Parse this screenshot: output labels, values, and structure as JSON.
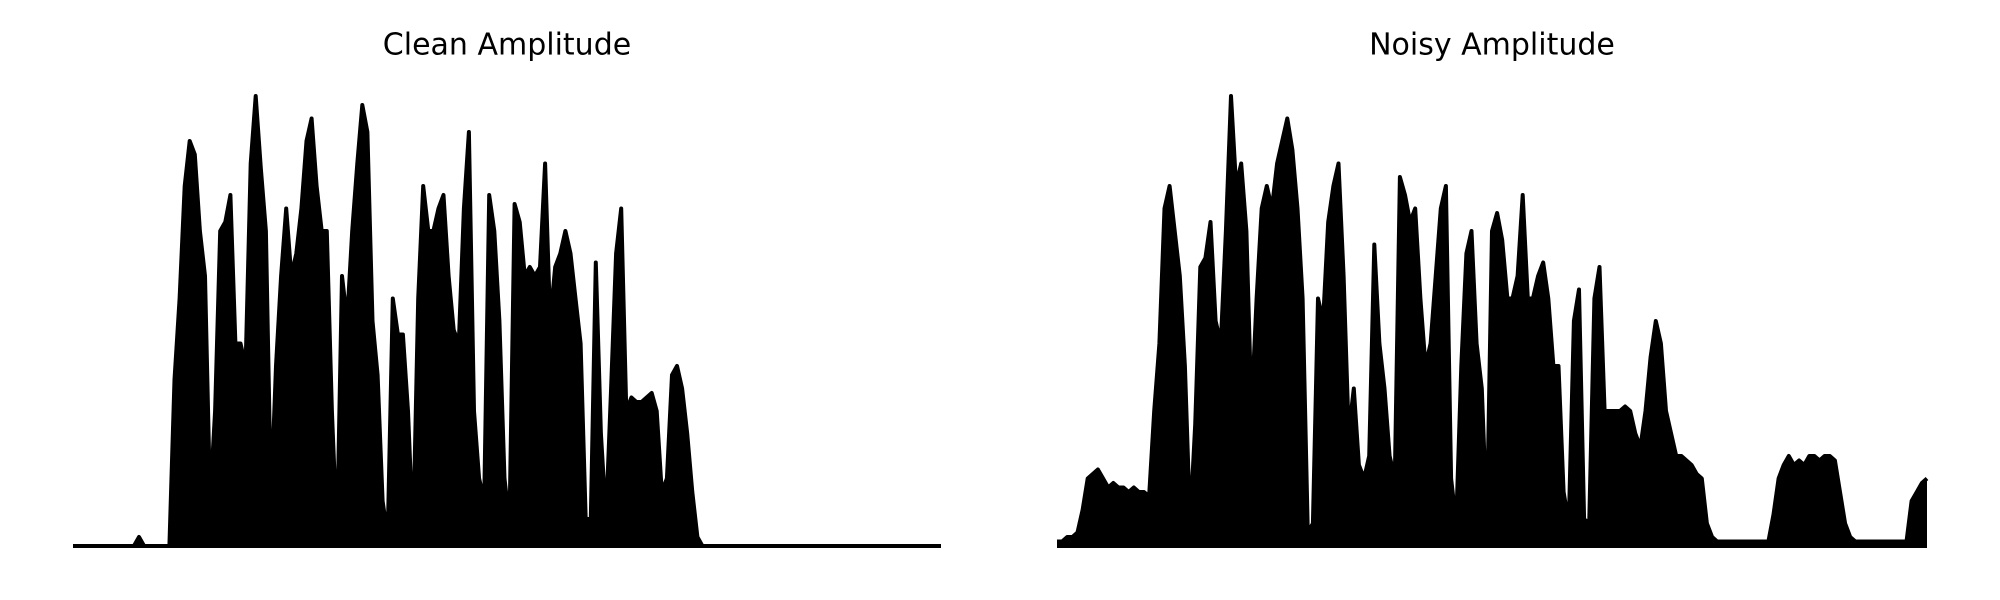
{
  "chart_data": [
    {
      "type": "area",
      "title": "Clean Amplitude",
      "color": "#000000",
      "ylim": [
        0,
        1
      ],
      "values": [
        0,
        0,
        0,
        0,
        0,
        0,
        0,
        0,
        0,
        0,
        0,
        0,
        0,
        0.02,
        0,
        0,
        0,
        0,
        0,
        0,
        0.37,
        0.55,
        0.8,
        0.9,
        0.87,
        0.7,
        0.6,
        0.1,
        0.3,
        0.7,
        0.72,
        0.78,
        0.45,
        0.45,
        0.4,
        0.85,
        1.0,
        0.84,
        0.7,
        0.1,
        0.4,
        0.6,
        0.75,
        0.6,
        0.65,
        0.75,
        0.9,
        0.95,
        0.8,
        0.7,
        0.7,
        0.3,
        0.02,
        0.6,
        0.5,
        0.7,
        0.85,
        0.98,
        0.92,
        0.5,
        0.38,
        0.1,
        0.02,
        0.55,
        0.47,
        0.47,
        0.3,
        0.02,
        0.55,
        0.8,
        0.7,
        0.7,
        0.75,
        0.78,
        0.6,
        0.48,
        0.45,
        0.75,
        0.92,
        0.3,
        0.15,
        0.1,
        0.78,
        0.7,
        0.5,
        0.15,
        0.05,
        0.76,
        0.72,
        0.6,
        0.62,
        0.6,
        0.62,
        0.85,
        0.5,
        0.62,
        0.65,
        0.7,
        0.65,
        0.55,
        0.45,
        0.06,
        0.06,
        0.63,
        0.25,
        0.06,
        0.35,
        0.65,
        0.75,
        0.3,
        0.33,
        0.32,
        0.32,
        0.33,
        0.34,
        0.3,
        0.12,
        0.15,
        0.38,
        0.4,
        0.35,
        0.25,
        0.12,
        0.02,
        0,
        0,
        0,
        0,
        0,
        0,
        0,
        0,
        0,
        0,
        0,
        0,
        0,
        0,
        0,
        0,
        0,
        0,
        0,
        0,
        0,
        0,
        0,
        0,
        0,
        0,
        0,
        0,
        0,
        0,
        0,
        0,
        0,
        0,
        0,
        0,
        0,
        0,
        0,
        0,
        0,
        0,
        0,
        0,
        0,
        0,
        0,
        0
      ]
    },
    {
      "type": "area",
      "title": "Noisy Amplitude",
      "color": "#000000",
      "ylim": [
        0,
        1
      ],
      "values": [
        0.01,
        0.01,
        0.02,
        0.02,
        0.03,
        0.08,
        0.15,
        0.16,
        0.17,
        0.15,
        0.13,
        0.14,
        0.13,
        0.13,
        0.12,
        0.13,
        0.12,
        0.12,
        0.11,
        0.3,
        0.45,
        0.75,
        0.8,
        0.7,
        0.6,
        0.4,
        0.05,
        0.27,
        0.62,
        0.64,
        0.72,
        0.5,
        0.45,
        0.7,
        1.0,
        0.8,
        0.85,
        0.7,
        0.3,
        0.55,
        0.75,
        0.8,
        0.75,
        0.85,
        0.9,
        0.95,
        0.88,
        0.75,
        0.55,
        0.03,
        0.05,
        0.55,
        0.5,
        0.72,
        0.8,
        0.85,
        0.6,
        0.25,
        0.35,
        0.18,
        0.15,
        0.2,
        0.67,
        0.45,
        0.35,
        0.2,
        0.15,
        0.82,
        0.78,
        0.72,
        0.75,
        0.55,
        0.4,
        0.45,
        0.6,
        0.75,
        0.8,
        0.15,
        0.05,
        0.4,
        0.65,
        0.7,
        0.45,
        0.35,
        0.05,
        0.7,
        0.74,
        0.68,
        0.55,
        0.55,
        0.6,
        0.78,
        0.55,
        0.55,
        0.6,
        0.63,
        0.55,
        0.4,
        0.4,
        0.12,
        0.05,
        0.5,
        0.57,
        0.06,
        0.05,
        0.55,
        0.62,
        0.3,
        0.3,
        0.3,
        0.3,
        0.31,
        0.3,
        0.25,
        0.22,
        0.3,
        0.42,
        0.5,
        0.45,
        0.3,
        0.25,
        0.2,
        0.2,
        0.19,
        0.18,
        0.16,
        0.15,
        0.05,
        0.02,
        0.01,
        0.01,
        0.01,
        0.01,
        0.01,
        0.01,
        0.01,
        0.01,
        0.01,
        0.01,
        0.01,
        0.07,
        0.15,
        0.18,
        0.2,
        0.18,
        0.19,
        0.18,
        0.2,
        0.2,
        0.19,
        0.2,
        0.2,
        0.19,
        0.12,
        0.05,
        0.02,
        0.01,
        0.01,
        0.01,
        0.01,
        0.01,
        0.01,
        0.01,
        0.01,
        0.01,
        0.01,
        0.01,
        0.1,
        0.12,
        0.14,
        0.15
      ]
    }
  ]
}
